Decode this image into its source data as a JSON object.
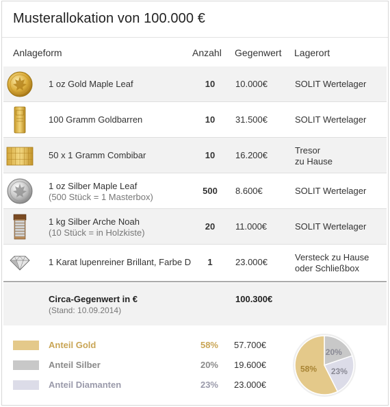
{
  "title": "Musterallokation von 100.000 €",
  "headers": {
    "form": "Anlageform",
    "quantity": "Anzahl",
    "value": "Gegenwert",
    "location": "Lagerort"
  },
  "rows": [
    {
      "icon": "gold-maple-leaf-coin-icon",
      "name": "1 oz Gold Maple Leaf",
      "sub": "",
      "quantity": "10",
      "value": "10.000€",
      "location": "SOLIT Wertelager",
      "location2": ""
    },
    {
      "icon": "gold-bar-icon",
      "name": "100 Gramm Goldbarren",
      "sub": "",
      "quantity": "10",
      "value": "31.500€",
      "location": "SOLIT Wertelager",
      "location2": ""
    },
    {
      "icon": "gold-combibar-icon",
      "name": "50 x 1 Gramm Combibar",
      "sub": "",
      "quantity": "10",
      "value": "16.200€",
      "location": "Tresor",
      "location2": "zu Hause"
    },
    {
      "icon": "silver-maple-leaf-coin-icon",
      "name": "1 oz Silber Maple Leaf",
      "sub": "(500 Stück = 1 Masterbox)",
      "quantity": "500",
      "value": "8.600€",
      "location": "SOLIT Wertelager",
      "location2": ""
    },
    {
      "icon": "silver-coin-tube-icon",
      "name": "1 kg Silber Arche Noah",
      "sub": "(10 Stück = in Holzkiste)",
      "quantity": "20",
      "value": "11.000€",
      "location": "SOLIT Wertelager",
      "location2": ""
    },
    {
      "icon": "diamond-icon",
      "name": "1 Karat lupenreiner Brillant, Farbe D",
      "sub": "",
      "quantity": "1",
      "value": "23.000€",
      "location": "Versteck zu Hause",
      "location2": "oder Schließbox"
    }
  ],
  "summary": {
    "label": "Circa-Gegenwert in €",
    "sub": "(Stand: 10.09.2014)",
    "value": "100.300€"
  },
  "shares": [
    {
      "label": "Anteil Gold",
      "pct": "58%",
      "value": "57.700€",
      "fraction": 0.58,
      "color": "#e4c98a",
      "text_color": "#c9a555"
    },
    {
      "label": "Anteil Silber",
      "pct": "20%",
      "value": "19.600€",
      "fraction": 0.2,
      "color": "#c8c8c8",
      "text_color": "#8a8a8a"
    },
    {
      "label": "Anteil Diamanten",
      "pct": "23%",
      "value": "23.000€",
      "fraction": 0.23,
      "color": "#dcdce8",
      "text_color": "#9a9aaa"
    }
  ],
  "colors": {
    "gold": "#e4c98a",
    "silver": "#c8c8c8",
    "diamond": "#dcdce8",
    "row_shade": "#f2f2f2"
  }
}
